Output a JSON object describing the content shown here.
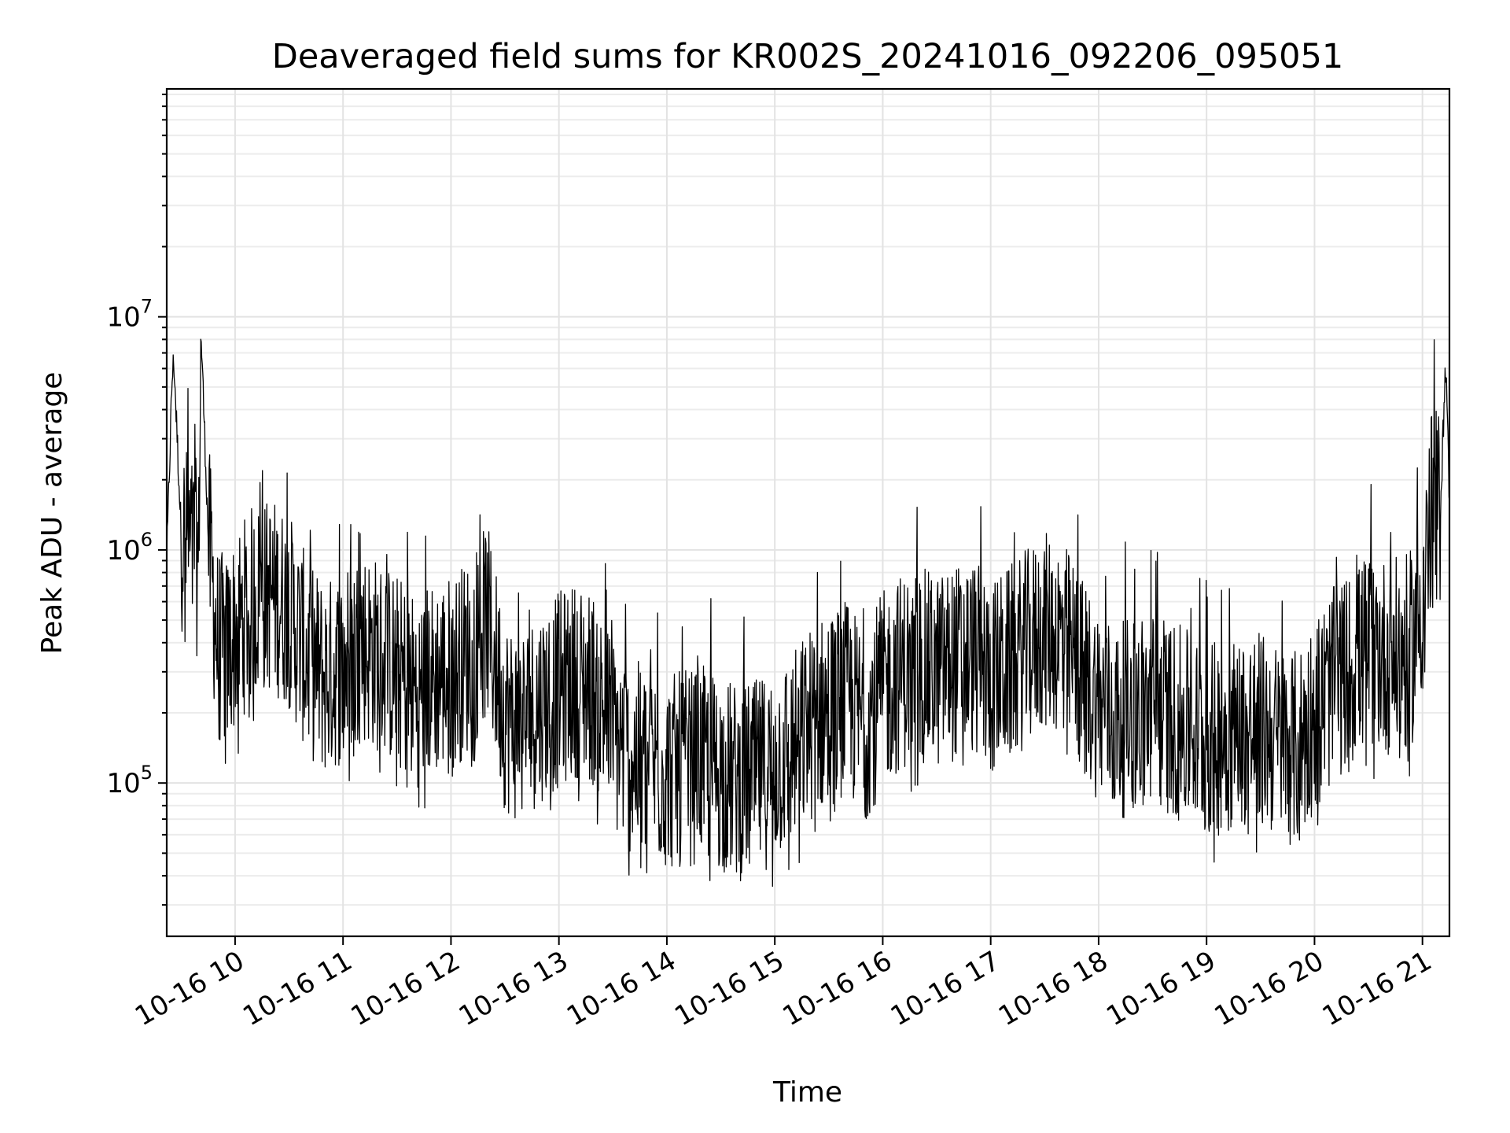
{
  "chart_data": {
    "type": "line",
    "title": "Deaveraged field sums for KR002S_20241016_092206_095051",
    "xlabel": "Time",
    "ylabel": "Peak ADU - average",
    "x_scale": "time",
    "y_scale": "log",
    "xlim": [
      "2024-10-16 09:22",
      "2024-10-16 21:15"
    ],
    "ylim": [
      22000,
      95000000
    ],
    "grid": true,
    "x_ticks": [
      "10-16 10",
      "10-16 11",
      "10-16 12",
      "10-16 13",
      "10-16 14",
      "10-16 15",
      "10-16 16",
      "10-16 17",
      "10-16 18",
      "10-16 19",
      "10-16 20",
      "10-16 21"
    ],
    "y_ticks": [
      {
        "value": 100000,
        "base": "10",
        "exp": "5"
      },
      {
        "value": 1000000,
        "base": "10",
        "exp": "6"
      },
      {
        "value": 10000000,
        "base": "10",
        "exp": "7"
      }
    ],
    "series": [
      {
        "color": "#000000",
        "x": [
          "09:22",
          "09:25",
          "09:26",
          "09:30",
          "09:35",
          "09:40",
          "09:41",
          "09:45",
          "09:50",
          "09:55",
          "10:00",
          "10:10",
          "10:20",
          "10:30",
          "10:40",
          "10:50",
          "11:00",
          "11:10",
          "11:20",
          "11:30",
          "11:40",
          "11:50",
          "12:00",
          "12:10",
          "12:20",
          "12:30",
          "12:35",
          "12:40",
          "12:50",
          "13:00",
          "13:10",
          "13:20",
          "13:30",
          "13:40",
          "13:50",
          "14:00",
          "14:10",
          "14:20",
          "14:30",
          "14:40",
          "14:50",
          "15:00",
          "15:10",
          "15:20",
          "15:30",
          "15:40",
          "15:50",
          "16:00",
          "16:10",
          "16:20",
          "16:30",
          "16:40",
          "16:50",
          "17:00",
          "17:10",
          "17:20",
          "17:30",
          "17:40",
          "17:50",
          "18:00",
          "18:10",
          "18:20",
          "18:30",
          "18:40",
          "18:50",
          "19:00",
          "19:10",
          "19:20",
          "19:30",
          "19:40",
          "19:50",
          "20:00",
          "20:10",
          "20:20",
          "20:30",
          "20:40",
          "20:50",
          "20:55",
          "21:00",
          "21:05",
          "21:10",
          "21:13",
          "21:15"
        ],
        "y": [
          900000,
          5500000,
          6500000,
          1200000,
          1000000,
          900000,
          9000000,
          1200000,
          400000,
          350000,
          450000,
          600000,
          650000,
          550000,
          350000,
          280000,
          320000,
          400000,
          350000,
          300000,
          250000,
          280000,
          300000,
          350000,
          500000,
          200000,
          180000,
          180000,
          220000,
          250000,
          280000,
          250000,
          160000,
          130000,
          120000,
          110000,
          115000,
          120000,
          110000,
          100000,
          105000,
          120000,
          140000,
          180000,
          210000,
          230000,
          180000,
          250000,
          300000,
          320000,
          300000,
          330000,
          350000,
          280000,
          320000,
          380000,
          450000,
          420000,
          300000,
          220000,
          180000,
          200000,
          210000,
          190000,
          170000,
          150000,
          160000,
          170000,
          170000,
          150000,
          140000,
          200000,
          260000,
          300000,
          380000,
          350000,
          350000,
          400000,
          650000,
          1500000,
          1500000,
          6800000,
          1500000
        ]
      }
    ]
  }
}
